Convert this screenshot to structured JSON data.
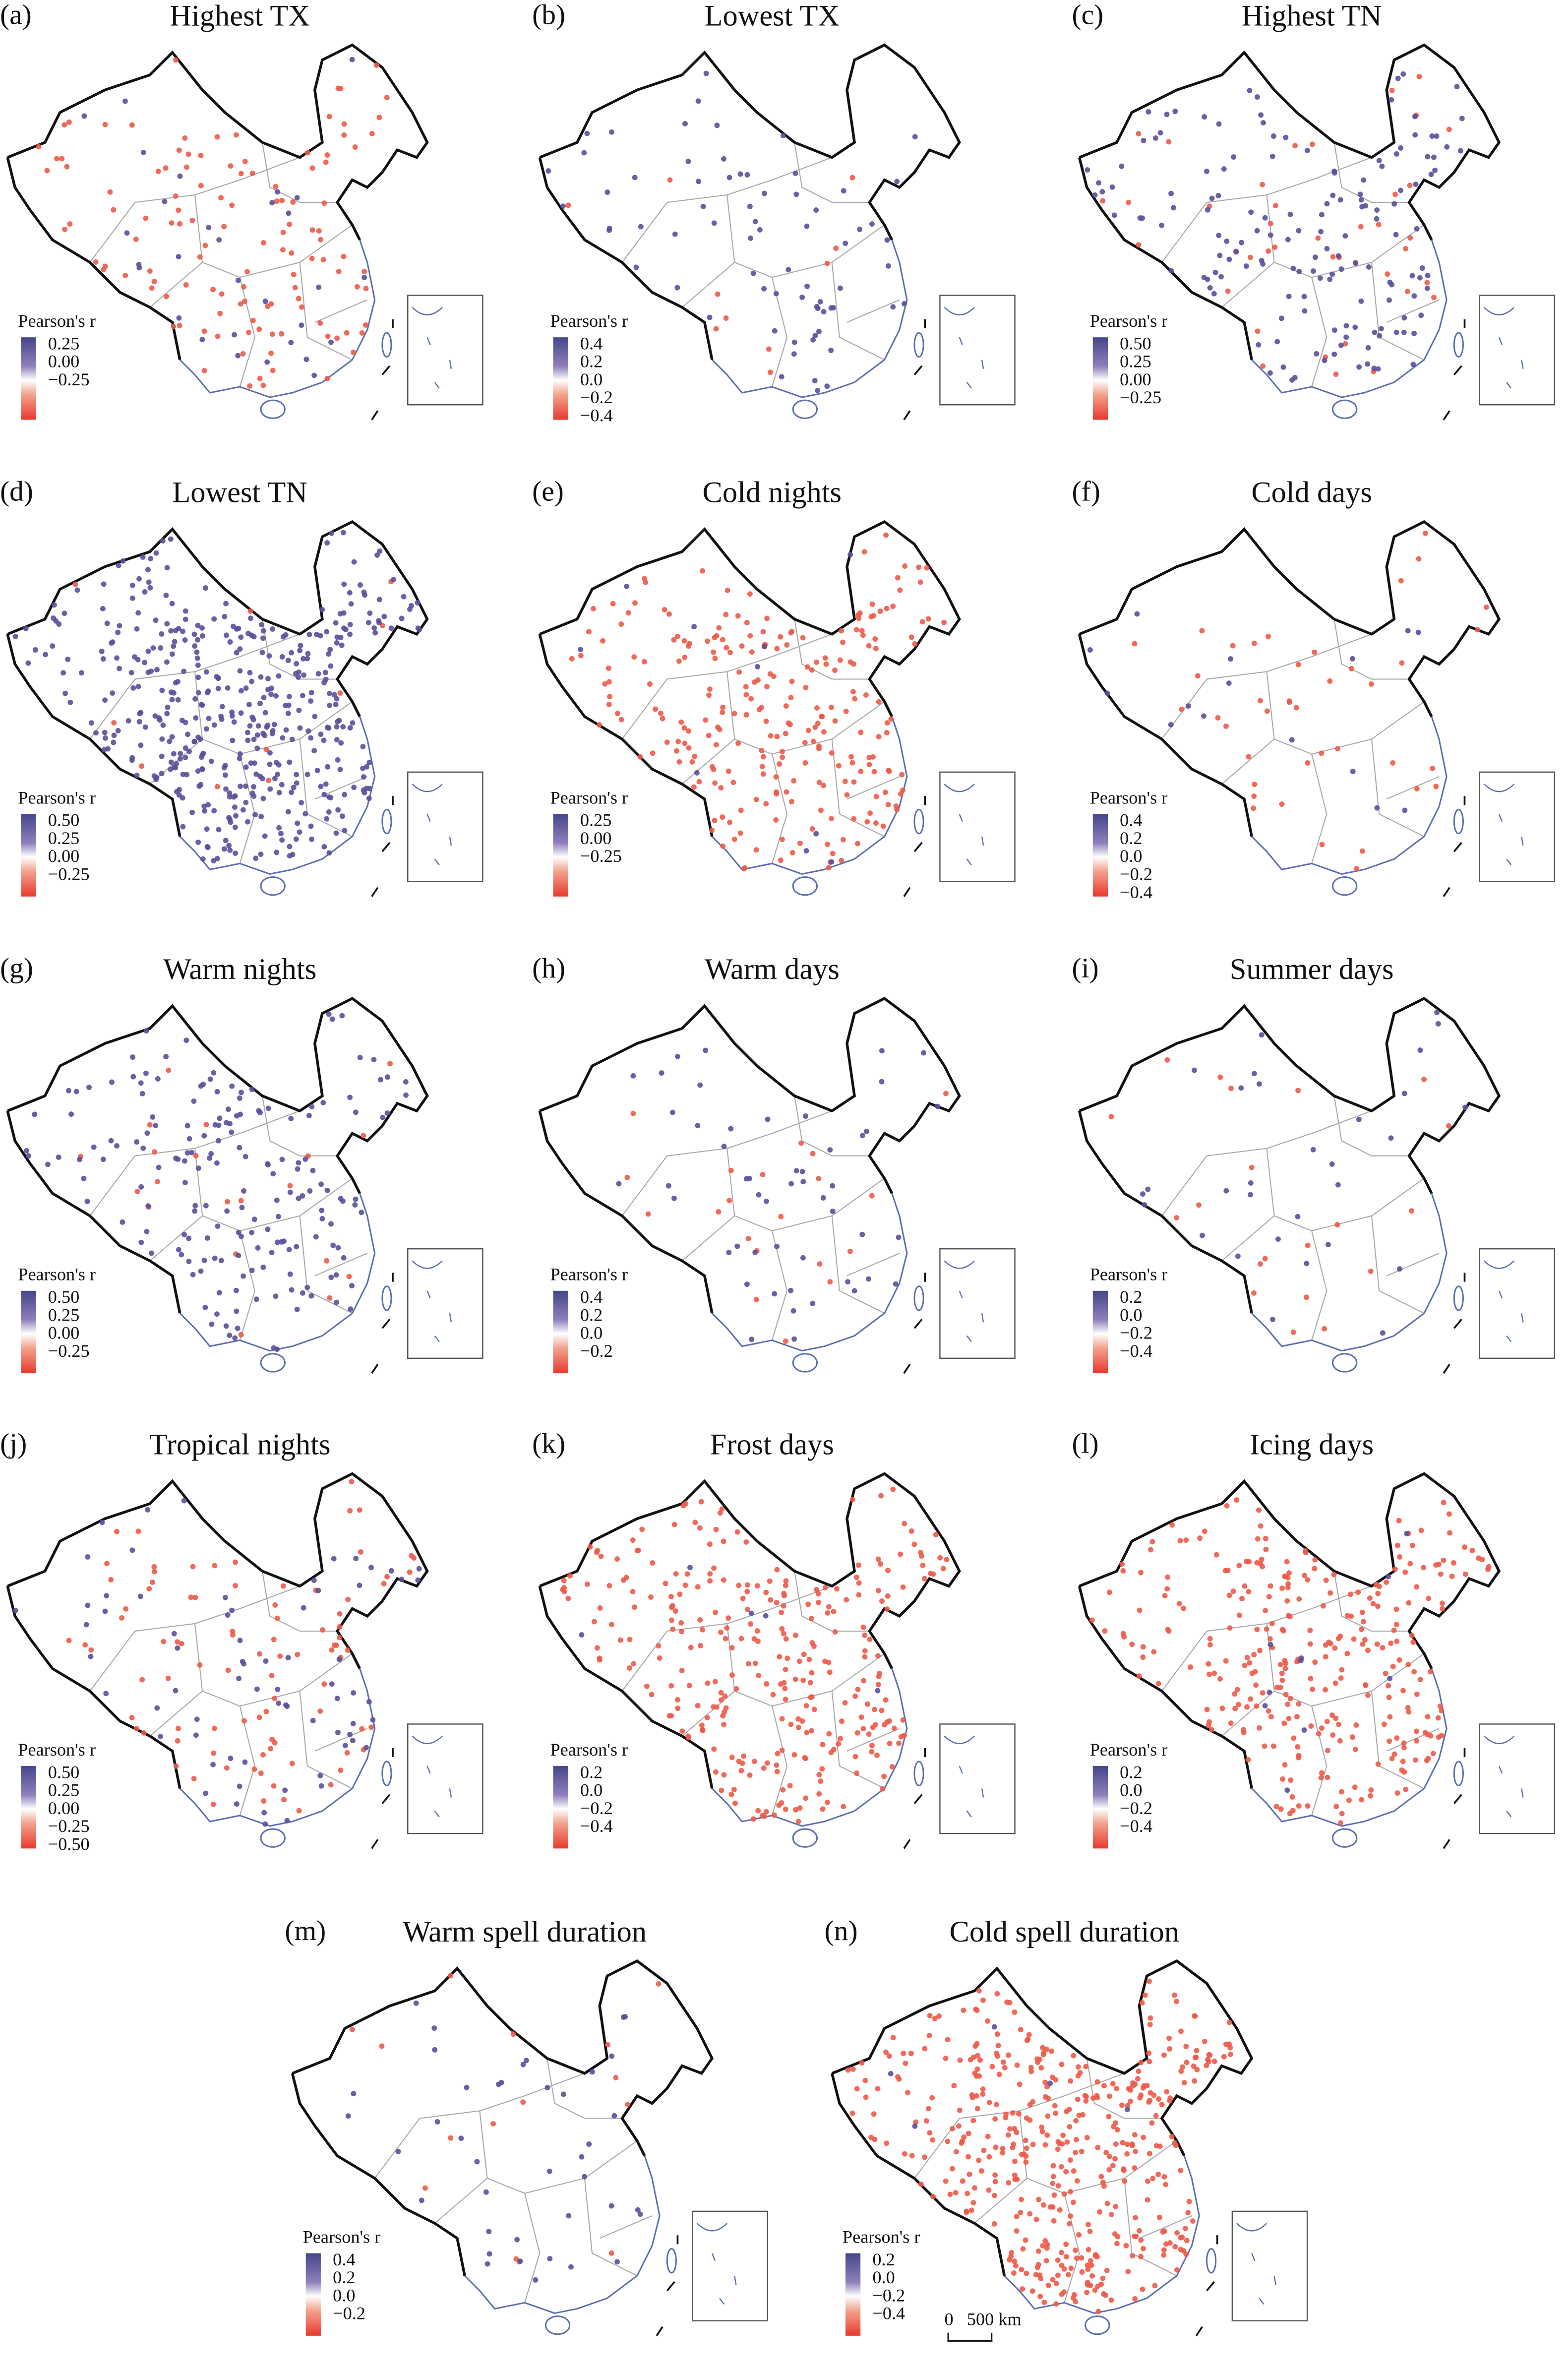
{
  "colors": {
    "positive": "#5a4f9a",
    "negative": "#ec5a48",
    "border": "#111111",
    "province": "#a9a9a9",
    "coast": "#5b6fb0"
  },
  "legend_title": "Pearson's r",
  "panels": [
    {
      "label": "(a)",
      "title": "Highest TX",
      "ticks": [
        "0.25",
        "0.00",
        "−0.25"
      ],
      "stations": {
        "positive": 30,
        "negative": 120
      }
    },
    {
      "label": "(b)",
      "title": "Lowest TX",
      "ticks": [
        "0.4",
        "0.2",
        "0.0",
        "−0.2",
        "−0.4"
      ],
      "stations": {
        "positive": 70,
        "negative": 10
      }
    },
    {
      "label": "(c)",
      "title": "Highest TN",
      "ticks": [
        "0.50",
        "0.25",
        "0.00",
        "−0.25"
      ],
      "stations": {
        "positive": 150,
        "negative": 40
      }
    },
    {
      "label": "(d)",
      "title": "Lowest TN",
      "ticks": [
        "0.50",
        "0.25",
        "0.00",
        "−0.25"
      ],
      "stations": {
        "positive": 450,
        "negative": 10
      }
    },
    {
      "label": "(e)",
      "title": "Cold nights",
      "ticks": [
        "0.25",
        "0.00",
        "−0.25"
      ],
      "stations": {
        "positive": 10,
        "negative": 250
      }
    },
    {
      "label": "(f)",
      "title": "Cold days",
      "ticks": [
        "0.4",
        "0.2",
        "0.0",
        "−0.2",
        "−0.4"
      ],
      "stations": {
        "positive": 15,
        "negative": 40
      }
    },
    {
      "label": "(g)",
      "title": "Warm nights",
      "ticks": [
        "0.50",
        "0.25",
        "0.00",
        "−0.25"
      ],
      "stations": {
        "positive": 180,
        "negative": 20
      }
    },
    {
      "label": "(h)",
      "title": "Warm days",
      "ticks": [
        "0.4",
        "0.2",
        "0.0",
        "−0.2"
      ],
      "stations": {
        "positive": 50,
        "negative": 20
      }
    },
    {
      "label": "(i)",
      "title": "Summer days",
      "ticks": [
        "0.2",
        "0.0",
        "−0.2",
        "−0.4"
      ],
      "stations": {
        "positive": 30,
        "negative": 20
      }
    },
    {
      "label": "(j)",
      "title": "Tropical nights",
      "ticks": [
        "0.50",
        "0.25",
        "0.00",
        "−0.25",
        "−0.50"
      ],
      "stations": {
        "positive": 70,
        "negative": 90
      }
    },
    {
      "label": "(k)",
      "title": "Frost days",
      "ticks": [
        "0.2",
        "0.0",
        "−0.2",
        "−0.4"
      ],
      "stations": {
        "positive": 5,
        "negative": 300
      }
    },
    {
      "label": "(l)",
      "title": "Icing days",
      "ticks": [
        "0.2",
        "0.0",
        "−0.2",
        "−0.4"
      ],
      "stations": {
        "positive": 10,
        "negative": 300
      }
    },
    {
      "label": "(m)",
      "title": "Warm spell duration",
      "ticks": [
        "0.4",
        "0.2",
        "0.0",
        "−0.2"
      ],
      "stations": {
        "positive": 40,
        "negative": 15
      }
    },
    {
      "label": "(n)",
      "title": "Cold spell duration",
      "ticks": [
        "0.2",
        "0.0",
        "−0.2",
        "−0.4"
      ],
      "stations": {
        "positive": 5,
        "negative": 450
      }
    }
  ],
  "scale_bar": {
    "zero": "0",
    "distance": "500 km"
  }
}
